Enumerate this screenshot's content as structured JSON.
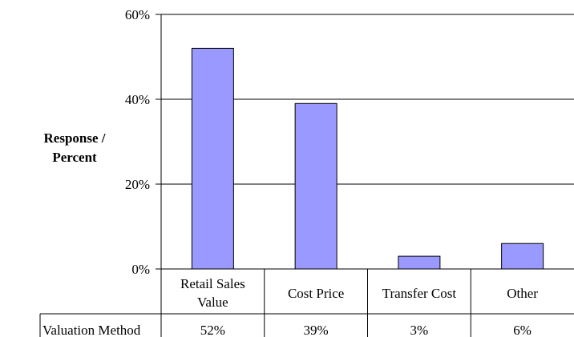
{
  "chart_data": {
    "type": "bar",
    "categories": [
      [
        "Retail Sales",
        "Value"
      ],
      [
        "Cost Price"
      ],
      [
        "Transfer Cost"
      ],
      [
        "Other"
      ]
    ],
    "values": [
      52,
      39,
      3,
      6
    ],
    "value_labels": [
      "52%",
      "39%",
      "3%",
      "6%"
    ],
    "ylabel": [
      "Response /",
      "Percent"
    ],
    "ylim": [
      0,
      60
    ],
    "yticks": [
      0,
      20,
      40,
      60
    ],
    "ytick_labels": [
      "0%",
      "20%",
      "40%",
      "60%"
    ],
    "grid": true,
    "table_row_header": "Valuation Method",
    "colors": {
      "bar_fill": "#9999ff",
      "bar_stroke": "#000000",
      "grid": "#000000"
    }
  }
}
